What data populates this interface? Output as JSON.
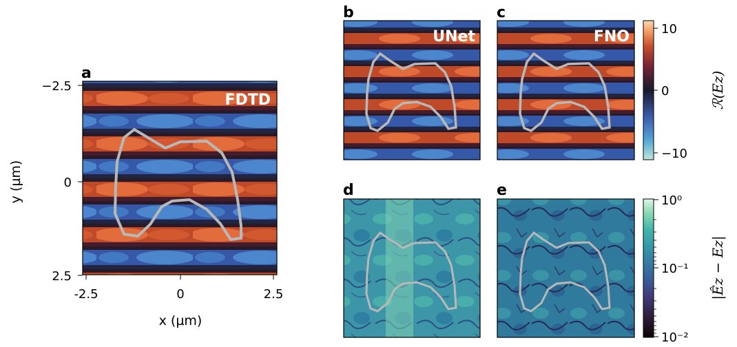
{
  "chart_data": [
    {
      "type": "heatmap",
      "panel": "a",
      "inset_label": "FDTD",
      "xlabel": "x (µm)",
      "ylabel": "y (µm)",
      "xlim": [
        -2.6,
        2.6
      ],
      "ylim": [
        2.5,
        -2.6
      ],
      "xticks": [
        -2.5,
        0,
        2.5
      ],
      "xtick_labels": [
        "-2.5",
        "0",
        "2.5"
      ],
      "yticks": [
        -2.5,
        0,
        2.5
      ],
      "ytick_labels": [
        "−2.5",
        "0",
        "2.5"
      ],
      "colormap": "icefire",
      "quantity": "Re(Ez)"
    },
    {
      "type": "heatmap",
      "panel": "b",
      "inset_label": "UNet",
      "quantity": "Re(Ez)",
      "colormap": "icefire"
    },
    {
      "type": "heatmap",
      "panel": "c",
      "inset_label": "FNO",
      "quantity": "Re(Ez)",
      "colormap": "icefire"
    },
    {
      "type": "heatmap",
      "panel": "d",
      "quantity": "|Êz − Ez|",
      "colormap": "mako",
      "scale": "log"
    },
    {
      "type": "heatmap",
      "panel": "e",
      "quantity": "|Êz − Ez|",
      "colormap": "mako",
      "scale": "log"
    }
  ],
  "colorbar_top": {
    "label": "ℛ(Ez)",
    "ticks": [
      10,
      0,
      -10
    ],
    "tick_labels": [
      "10",
      "0",
      "−10"
    ],
    "range": [
      -11,
      11
    ]
  },
  "colorbar_bottom": {
    "label": "|Êz − Ez|",
    "scale": "log",
    "range": [
      0.01,
      1
    ],
    "ticks": [
      1,
      0.1,
      0.01
    ],
    "tick_labels": [
      "10⁰",
      "10⁻¹",
      "10⁻²"
    ]
  },
  "panel_labels": {
    "a": "a",
    "b": "b",
    "c": "c",
    "d": "d",
    "e": "e"
  },
  "colors": {
    "outline": "#b8b8b8",
    "icefire": [
      "#bde6dd",
      "#55a6d6",
      "#3d5fb0",
      "#1a1a2e",
      "#7a2536",
      "#c8502c",
      "#f6a56c",
      "#fcd6b4"
    ],
    "mako": [
      "#0b0405",
      "#2e1e3c",
      "#413d7b",
      "#37659e",
      "#348fa7",
      "#40b7ad",
      "#8bdab2",
      "#def5e5"
    ]
  }
}
